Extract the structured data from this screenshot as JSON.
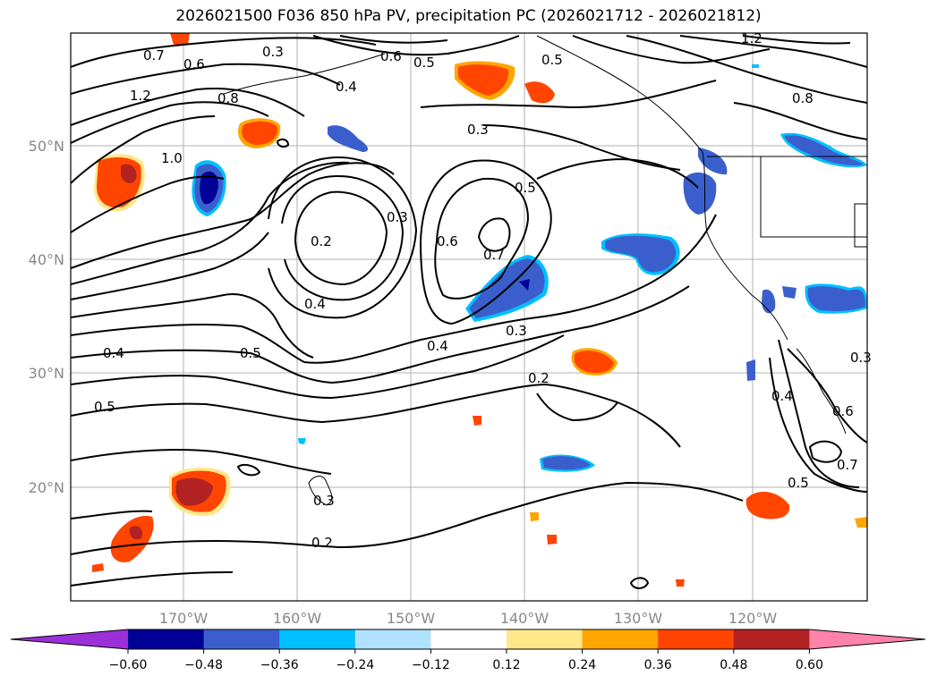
{
  "title": "2026021500 F036 850 hPa PV, precipitation PC (2026021712 - 2026021812)",
  "lat_labels": [
    "50°N",
    "40°N",
    "30°N",
    "20°N"
  ],
  "lon_labels": [
    "170°W",
    "160°W",
    "150°W",
    "140°W",
    "130°W",
    "120°W"
  ],
  "colorbar": {
    "tick_labels": [
      "−0.60",
      "−0.48",
      "−0.36",
      "−0.24",
      "−0.12",
      "0.12",
      "0.24",
      "0.36",
      "0.48",
      "0.60"
    ],
    "colors": [
      "#9b30d9",
      "#000096",
      "#3a5fcd",
      "#00bfff",
      "#b0e2ff",
      "#ffffff",
      "#ffe78a",
      "#ffa500",
      "#ff4500",
      "#b22222",
      "#ff82ab"
    ]
  },
  "contour_labels": [
    "0.7",
    "0.6",
    "0.3",
    "0.6",
    "0.5",
    "0.5",
    "1.2",
    "0.8",
    "1.2",
    "0.4",
    "1.0",
    "0.8",
    "0.3",
    "0.5",
    "0.2",
    "0.3",
    "0.6",
    "0.7",
    "0.4",
    "0.5",
    "0.4",
    "0.3",
    "0.2",
    "0.4",
    "0.5",
    "0.3",
    "0.2",
    "0.4",
    "0.6",
    "0.7",
    "0.5",
    "0.3"
  ]
}
